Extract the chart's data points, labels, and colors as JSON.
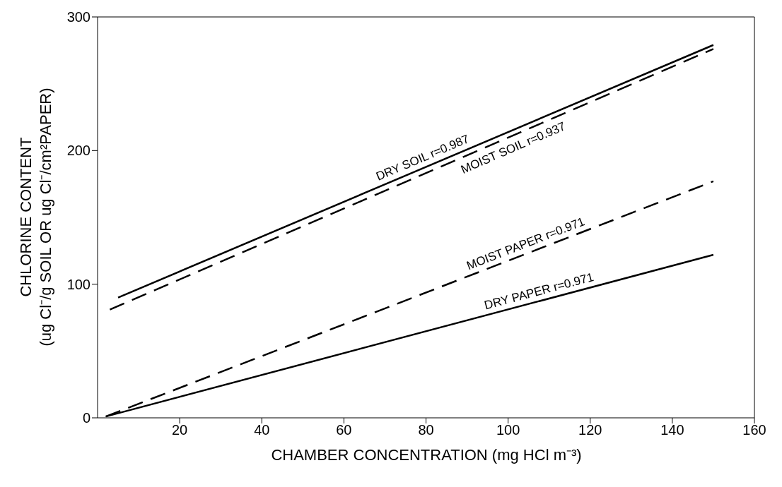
{
  "chart_data": {
    "type": "line",
    "xlabel": "CHAMBER CONCENTRATION (mg HCl m⁻³)",
    "ylabel": "CHLORINE CONTENT\n(ug Cl⁻/g SOIL OR ug Cl⁻/cm²PAPER)",
    "xlim": [
      0,
      160
    ],
    "xticks": [
      20,
      40,
      60,
      80,
      100,
      120,
      140,
      160
    ],
    "ylim": [
      0,
      300
    ],
    "yticks": [
      0,
      100,
      200,
      300
    ],
    "marker": "none",
    "series": [
      {
        "name": "DRY SOIL r=0.987",
        "color": "#000000",
        "line_style": "solid",
        "x": [
          5,
          150
        ],
        "values": [
          90,
          279
        ]
      },
      {
        "name": "MOIST SOIL r=0.937",
        "color": "#000000",
        "line_style": "dashed",
        "x": [
          3,
          150
        ],
        "values": [
          81,
          276
        ]
      },
      {
        "name": "MOIST PAPER r=0.971",
        "color": "#000000",
        "line_style": "dashed",
        "x": [
          2,
          150
        ],
        "values": [
          1,
          177
        ]
      },
      {
        "name": "DRY PAPER r=0.971",
        "color": "#000000",
        "line_style": "solid",
        "x": [
          2,
          150
        ],
        "values": [
          1,
          122
        ]
      }
    ]
  }
}
